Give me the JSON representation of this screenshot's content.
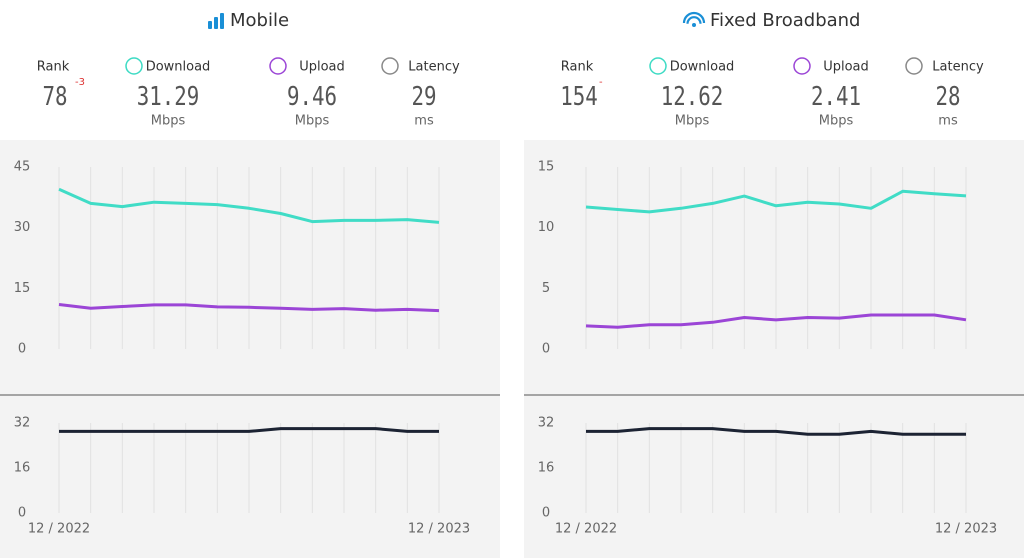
{
  "panels": [
    {
      "title": "Mobile",
      "stats": [
        {
          "label": "Rank",
          "value": 78,
          "change": -3
        },
        {
          "label": "Download",
          "value": 31.29,
          "unit": "Mbps"
        },
        {
          "label": "Upload",
          "value": 9.46,
          "unit": "Mbps"
        },
        {
          "label": "Latency",
          "value": 29,
          "unit": "ms"
        }
      ],
      "chart_data": [
        {
          "type": "line",
          "ylim": [
            0,
            45
          ],
          "yticks": [
            0,
            15,
            30,
            45
          ],
          "series": [
            {
              "color": "#40dcc6",
              "values": [
                39.5,
                36,
                35.2,
                36.3,
                36,
                35.7,
                34.8,
                33.5,
                31.5,
                31.8,
                31.8,
                32,
                31.3
              ]
            },
            {
              "color": "#9b45d6",
              "values": [
                11,
                10.1,
                10.5,
                10.9,
                10.9,
                10.4,
                10.3,
                10.1,
                9.8,
                10,
                9.6,
                9.8,
                9.5
              ]
            }
          ]
        },
        {
          "type": "line",
          "ylim": [
            0,
            32
          ],
          "yticks": [
            0,
            16,
            32
          ],
          "categories": [
            "12 / 2022",
            null,
            null,
            null,
            null,
            null,
            null,
            null,
            null,
            null,
            null,
            null,
            "12 / 2023"
          ],
          "series": [
            {
              "color": "#1c2333",
              "values": [
                29,
                29,
                29,
                29,
                29,
                29,
                29,
                30,
                30,
                30,
                30,
                29,
                29
              ]
            }
          ]
        }
      ]
    },
    {
      "title": "Fixed Broadband",
      "stats": [
        {
          "label": "Rank",
          "value": 154,
          "change": "-"
        },
        {
          "label": "Download",
          "value": 12.62,
          "unit": "Mbps"
        },
        {
          "label": "Upload",
          "value": 2.41,
          "unit": "Mbps"
        },
        {
          "label": "Latency",
          "value": 28,
          "unit": "ms"
        }
      ],
      "chart_data": [
        {
          "type": "line",
          "ylim": [
            0,
            15
          ],
          "yticks": [
            0,
            5,
            10,
            15
          ],
          "series": [
            {
              "color": "#40dcc6",
              "values": [
                11.7,
                11.5,
                11.3,
                11.6,
                12,
                12.6,
                11.8,
                12.1,
                11.95,
                11.6,
                13,
                12.8,
                12.62
              ]
            },
            {
              "color": "#9b45d6",
              "values": [
                1.9,
                1.8,
                2,
                2,
                2.2,
                2.6,
                2.4,
                2.6,
                2.55,
                2.8,
                2.8,
                2.8,
                2.41
              ]
            }
          ]
        },
        {
          "type": "line",
          "ylim": [
            0,
            32
          ],
          "yticks": [
            0,
            16,
            32
          ],
          "categories": [
            "12 / 2022",
            null,
            null,
            null,
            null,
            null,
            null,
            null,
            null,
            null,
            null,
            null,
            "12 / 2023"
          ],
          "series": [
            {
              "color": "#1c2333",
              "values": [
                29,
                29,
                30,
                30,
                30,
                29,
                29,
                28,
                28,
                29,
                28,
                28,
                28
              ]
            }
          ]
        }
      ]
    }
  ]
}
